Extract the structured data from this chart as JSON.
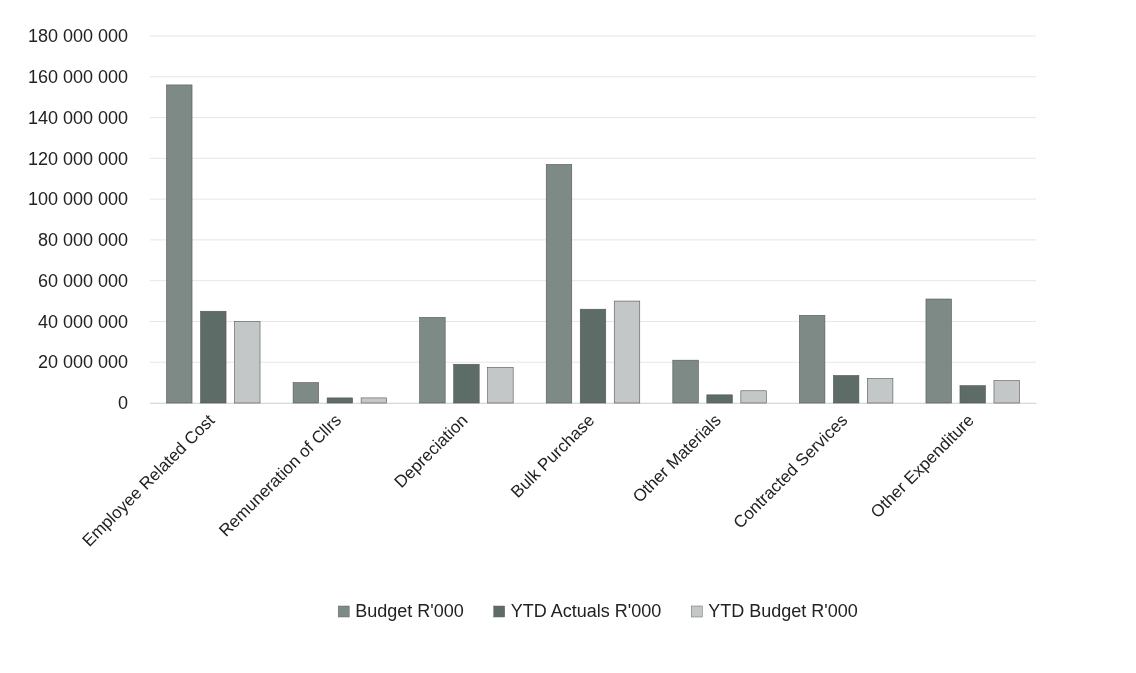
{
  "chart_data": {
    "type": "bar",
    "categories": [
      "Employee Related Cost",
      "Remuneration of Cllrs",
      "Depreciation",
      "Bulk Purchase",
      "Other Materials",
      "Contracted Services",
      "Other Expenditure"
    ],
    "series": [
      {
        "name": "Budget R'000",
        "color": "#7e8a85",
        "values": [
          156000000,
          10000000,
          42000000,
          117000000,
          21000000,
          43000000,
          51000000
        ]
      },
      {
        "name": "YTD Actuals R'000",
        "color": "#5e6c67",
        "values": [
          45000000,
          2500000,
          19000000,
          46000000,
          4000000,
          13500000,
          8500000
        ]
      },
      {
        "name": "YTD Budget  R'000",
        "color": "#c3c7c7",
        "values": [
          40000000,
          2500000,
          17500000,
          50000000,
          6000000,
          12000000,
          11000000
        ]
      }
    ],
    "ylim": [
      0,
      180000000
    ],
    "yticks": [
      {
        "value": 0,
        "label": "0"
      },
      {
        "value": 20000000,
        "label": "20 000 000"
      },
      {
        "value": 40000000,
        "label": "40 000 000"
      },
      {
        "value": 60000000,
        "label": "60 000 000"
      },
      {
        "value": 80000000,
        "label": "80 000 000"
      },
      {
        "value": 100000000,
        "label": "100 000 000"
      },
      {
        "value": 120000000,
        "label": "120 000 000"
      },
      {
        "value": 140000000,
        "label": "140 000 000"
      },
      {
        "value": 160000000,
        "label": "160 000 000"
      },
      {
        "value": 180000000,
        "label": "180 000 000"
      }
    ],
    "grid": "y",
    "legend": "bottom"
  }
}
